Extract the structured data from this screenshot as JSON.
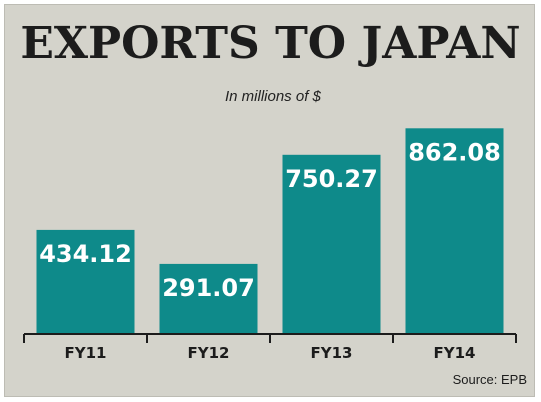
{
  "chart_data": {
    "type": "bar",
    "title": "EXPORTS TO JAPAN",
    "subtitle": "In millions of $",
    "categories": [
      "FY11",
      "FY12",
      "FY13",
      "FY14"
    ],
    "values": [
      434.12,
      291.07,
      750.27,
      862.08
    ],
    "value_labels": [
      "434.12",
      "291.07",
      "750.27",
      "862.08"
    ],
    "ylim": [
      0,
      960
    ],
    "grid": false,
    "legend": "none",
    "source": "Source: EPB"
  },
  "colors": {
    "bar": "#0e8a8a",
    "background": "#d4d3cb",
    "axis": "#1c1c1c"
  }
}
